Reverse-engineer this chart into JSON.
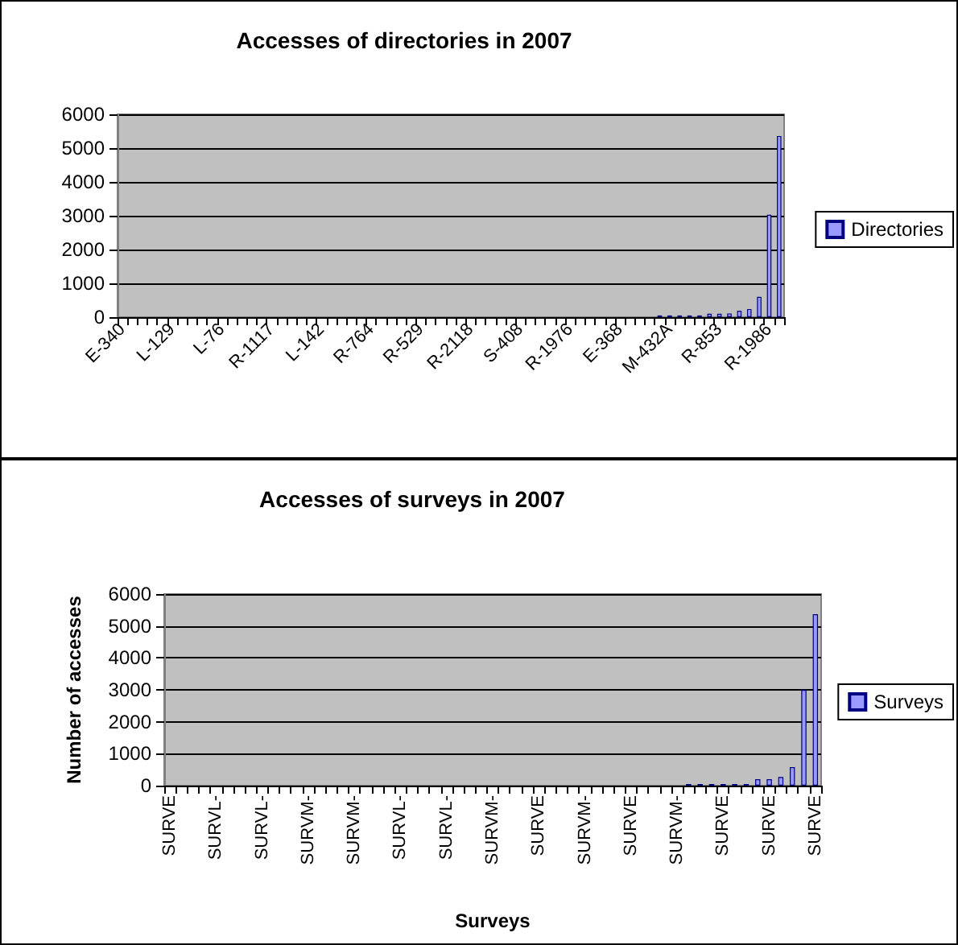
{
  "chart_data": [
    {
      "type": "bar",
      "title": "Accesses of directories in 2007",
      "categories": [
        "E-340",
        null,
        null,
        null,
        null,
        "L-129",
        null,
        null,
        null,
        null,
        "L-76",
        null,
        null,
        null,
        null,
        "R-1117",
        null,
        null,
        null,
        null,
        "L-142",
        null,
        null,
        null,
        null,
        "R-764",
        null,
        null,
        null,
        null,
        "R-529",
        null,
        null,
        null,
        null,
        "R-2118",
        null,
        null,
        null,
        null,
        "S-408",
        null,
        null,
        null,
        null,
        "R-1976",
        null,
        null,
        null,
        null,
        "E-368",
        null,
        null,
        null,
        null,
        "M-432A",
        null,
        null,
        null,
        null,
        "R-853",
        null,
        null,
        null,
        null,
        "R-1986",
        null
      ],
      "series": [
        {
          "name": "Directories",
          "color": "#9999ff",
          "values": [
            0,
            0,
            0,
            0,
            0,
            0,
            0,
            0,
            0,
            0,
            0,
            0,
            0,
            0,
            0,
            0,
            0,
            0,
            0,
            0,
            0,
            0,
            0,
            0,
            0,
            0,
            0,
            0,
            0,
            0,
            0,
            0,
            0,
            0,
            0,
            0,
            0,
            0,
            0,
            0,
            0,
            0,
            0,
            0,
            0,
            0,
            0,
            0,
            0,
            0,
            0,
            0,
            0,
            0,
            50,
            50,
            50,
            50,
            50,
            100,
            100,
            110,
            190,
            240,
            600,
            3030,
            5360
          ]
        }
      ],
      "ylim": [
        0,
        6000
      ],
      "yticks": [
        0,
        1000,
        2000,
        3000,
        4000,
        5000,
        6000
      ],
      "grid": "y",
      "legend": "right"
    },
    {
      "type": "bar",
      "title": "Accesses of surveys in 2007",
      "xlabel": "Surveys",
      "ylabel": "Number of accesses",
      "categories": [
        "SURVE",
        null,
        null,
        null,
        "SURVL-",
        null,
        null,
        null,
        "SURVL-",
        null,
        null,
        null,
        "SURVM-",
        null,
        null,
        null,
        "SURVM-",
        null,
        null,
        null,
        "SURVL-",
        null,
        null,
        null,
        "SURVL-",
        null,
        null,
        null,
        "SURVM-",
        null,
        null,
        null,
        "SURVE",
        null,
        null,
        null,
        "SURVM-",
        null,
        null,
        null,
        "SURVE",
        null,
        null,
        null,
        "SURVM-",
        null,
        null,
        null,
        "SURVE",
        null,
        null,
        null,
        "SURVE",
        null,
        null,
        null,
        "SURVE"
      ],
      "series": [
        {
          "name": "Surveys",
          "color": "#9999ff",
          "values": [
            0,
            0,
            0,
            0,
            0,
            0,
            0,
            0,
            0,
            0,
            0,
            0,
            0,
            0,
            0,
            0,
            0,
            0,
            0,
            0,
            0,
            0,
            0,
            0,
            0,
            0,
            0,
            0,
            0,
            0,
            0,
            0,
            0,
            0,
            0,
            0,
            0,
            0,
            0,
            0,
            0,
            0,
            0,
            0,
            0,
            50,
            50,
            50,
            50,
            50,
            50,
            200,
            200,
            270,
            580,
            3000,
            5370
          ]
        }
      ],
      "ylim": [
        0,
        6000
      ],
      "yticks": [
        0,
        1000,
        2000,
        3000,
        4000,
        5000,
        6000
      ],
      "grid": "y",
      "legend": "right"
    }
  ]
}
